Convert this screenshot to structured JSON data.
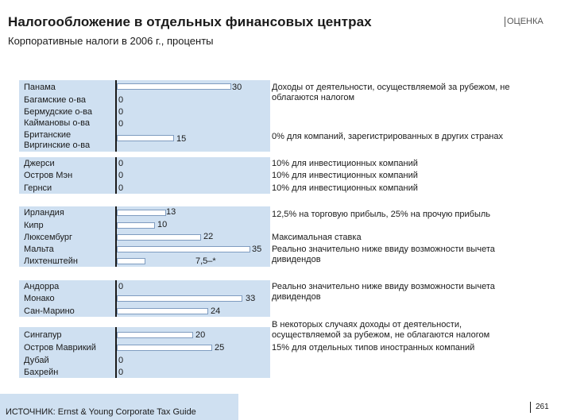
{
  "header": {
    "title": "Налогообложение в отдельных финансовых центрах",
    "badge": "ОЦЕНКА",
    "subtitle": "Корпоративные налоги в 2006 г., проценты"
  },
  "groups": [
    {
      "countries": [
        "Панама",
        "Багамские о-ва",
        "Бермудские о-ва",
        "Каймановы о-ва",
        "Британские",
        "Виргинские о-ва"
      ],
      "values": [
        "30",
        "0",
        "0",
        "0",
        "15"
      ],
      "notes": [
        "Доходы от деятельности, осуществляемой за рубежом, не облагаются налогом",
        "0% для компаний, зарегистрированных в других странах"
      ]
    },
    {
      "countries": [
        "Джерси",
        "Остров Мэн",
        "Гернси"
      ],
      "values": [
        "0",
        "0",
        "0"
      ],
      "notes": [
        "10% для инвестиционных компаний",
        "10% для инвестиционных компаний",
        "10% для инвестиционных компаний"
      ]
    },
    {
      "countries": [
        "Ирландия",
        "Кипр",
        "Люксембург",
        "Мальта",
        "Лихтенштейн"
      ],
      "values": [
        "13",
        "10",
        "22",
        "35",
        "7,5–*"
      ],
      "notes": [
        "12,5% на торговую прибыль, 25% на прочую прибыль",
        "Максимальная ставка",
        "Реально значительно ниже ввиду возможности вычета дивидендов"
      ]
    },
    {
      "countries": [
        "Андорра",
        "Монако",
        "Сан-Марино"
      ],
      "values": [
        "0",
        "33",
        "24"
      ],
      "notes": [
        "Реально значительно ниже ввиду возможности вычета дивидендов"
      ]
    },
    {
      "countries": [
        "Сингапур",
        "Остров Маврикий",
        "Дубай",
        "Бахрейн"
      ],
      "values": [
        "20",
        "25",
        "0",
        "0"
      ],
      "notes": [
        "В некоторых случаях доходы от деятельности, осуществляемой за рубежом, не облагаются налогом",
        "15% для отдельных типов иностранных компаний"
      ]
    }
  ],
  "chart_data": {
    "type": "bar",
    "title": "Корпоративные налоги в 2006 г., проценты",
    "categories": [
      "Панама",
      "Багамские о-ва",
      "Бермудские о-ва",
      "Каймановы о-ва",
      "Британские Виргинские о-ва",
      "Джерси",
      "Остров Мэн",
      "Гернси",
      "Ирландия",
      "Кипр",
      "Люксембург",
      "Мальта",
      "Лихтенштейн",
      "Андорра",
      "Монако",
      "Сан-Марино",
      "Сингапур",
      "Остров Маврикий",
      "Дубай",
      "Бахрейн"
    ],
    "values": [
      30,
      0,
      0,
      0,
      15,
      0,
      0,
      0,
      13,
      10,
      22,
      35,
      7.5,
      0,
      33,
      24,
      20,
      25,
      0,
      0
    ],
    "xlim": [
      0,
      35
    ]
  },
  "footer": {
    "source": "ИСТОЧНИК: Ernst & Young Corporate Tax Guide",
    "page": "261"
  }
}
